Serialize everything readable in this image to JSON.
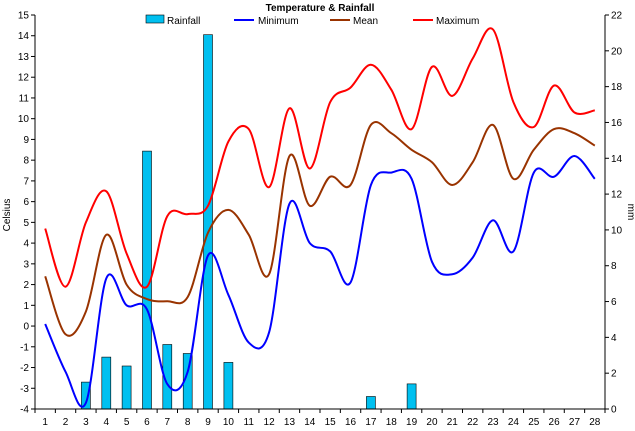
{
  "chart_data": {
    "type": "bar+line",
    "title": "Temperature & Rainfall",
    "ylabel_left": "Celsius",
    "ylabel_right": "mm",
    "ylim_left": [
      -4,
      15
    ],
    "ylim_right": [
      0,
      22
    ],
    "x": [
      1,
      2,
      3,
      4,
      5,
      6,
      7,
      8,
      9,
      10,
      11,
      12,
      13,
      14,
      15,
      16,
      17,
      18,
      19,
      20,
      21,
      22,
      23,
      24,
      25,
      26,
      27,
      28
    ],
    "x_tick_labels": [
      "1",
      "2",
      "3",
      "4",
      "5",
      "6",
      "7",
      "8",
      "9",
      "10",
      "11",
      "12",
      "13",
      "14",
      "15",
      "16",
      "17",
      "18",
      "19",
      "20",
      "21",
      "22",
      "23",
      "24",
      "25",
      "26",
      "27",
      "28"
    ],
    "y_left_ticks": [
      "-4",
      "-3",
      "-2",
      "-1",
      "0",
      "1",
      "2",
      "3",
      "4",
      "5",
      "6",
      "7",
      "8",
      "9",
      "10",
      "11",
      "12",
      "13",
      "14",
      "15"
    ],
    "y_right_ticks": [
      "0",
      "2",
      "4",
      "6",
      "8",
      "10",
      "12",
      "14",
      "16",
      "18",
      "20",
      "22"
    ],
    "rainfall": {
      "name": "Rainfall",
      "color": "#00c0f0",
      "values": [
        0,
        0,
        1.5,
        2.9,
        2.4,
        14.4,
        3.6,
        3.1,
        20.9,
        2.6,
        0,
        0,
        0,
        0,
        0,
        0,
        0.7,
        0,
        1.4,
        0,
        0,
        0,
        0,
        0,
        0,
        0,
        0,
        0
      ]
    },
    "series": [
      {
        "name": "Minimum",
        "color": "#0000ff",
        "values": [
          0.1,
          -2.2,
          -3.7,
          2.3,
          1.0,
          0.8,
          -2.8,
          -2.2,
          3.4,
          1.5,
          -0.8,
          -0.3,
          5.9,
          4.0,
          3.6,
          2.1,
          6.8,
          7.4,
          7.1,
          3.1,
          2.5,
          3.3,
          5.1,
          3.6,
          7.4,
          7.2,
          8.2,
          7.1
        ]
      },
      {
        "name": "Mean",
        "color": "#993300",
        "values": [
          2.4,
          -0.4,
          0.7,
          4.4,
          2.0,
          1.3,
          1.2,
          1.4,
          4.5,
          5.6,
          4.4,
          2.5,
          8.2,
          5.8,
          7.2,
          6.8,
          9.7,
          9.3,
          8.5,
          7.9,
          6.8,
          7.9,
          9.7,
          7.1,
          8.5,
          9.5,
          9.3,
          8.7
        ]
      },
      {
        "name": "Maximum",
        "color": "#ff0000",
        "values": [
          4.7,
          1.9,
          5.0,
          6.5,
          3.5,
          1.9,
          5.3,
          5.4,
          5.8,
          8.9,
          9.5,
          6.7,
          10.5,
          7.6,
          10.8,
          11.5,
          12.6,
          11.4,
          9.5,
          12.5,
          11.1,
          12.9,
          14.3,
          10.8,
          9.6,
          11.6,
          10.3,
          10.4
        ]
      }
    ],
    "legend": [
      {
        "label": "Rainfall",
        "kind": "bar",
        "color": "#00c0f0"
      },
      {
        "label": "Minimum",
        "kind": "line",
        "color": "#0000ff"
      },
      {
        "label": "Mean",
        "kind": "line",
        "color": "#993300"
      },
      {
        "label": "Maximum",
        "kind": "line",
        "color": "#ff0000"
      }
    ],
    "legend_position": "top",
    "grid": false
  }
}
